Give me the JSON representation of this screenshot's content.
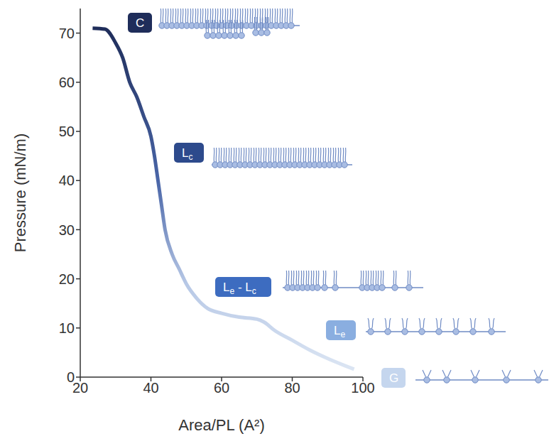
{
  "chart_data": {
    "type": "line",
    "x_label": "Area/PL (A²)",
    "y_label": "Pressure (mN/m)",
    "x": [
      23.5,
      27,
      30,
      32,
      34,
      36,
      38,
      40,
      41,
      42,
      43,
      44,
      46,
      48,
      50,
      53,
      56,
      60,
      65,
      70,
      72,
      75,
      80,
      85,
      90,
      95,
      97.5
    ],
    "values": [
      71,
      70.8,
      68,
      65,
      60,
      57,
      53,
      49,
      45,
      40,
      35,
      30,
      25,
      22,
      19,
      16,
      14,
      13,
      12.2,
      11.8,
      11.2,
      9.5,
      7.5,
      5.5,
      3.8,
      2.3,
      1.6
    ],
    "color": "#1f2d5a",
    "xlim": [
      20,
      100
    ],
    "xticks": [
      20,
      40,
      60,
      80,
      100
    ],
    "ylim": [
      0,
      75
    ],
    "yticks": [
      0,
      10,
      20,
      30,
      40,
      50,
      60,
      70
    ],
    "grid": false,
    "annotations": [
      {
        "text": "C",
        "color": "#1f2d5a"
      },
      {
        "text": "Lc",
        "color": "#2d4a8c"
      },
      {
        "text": "Le - Lc",
        "color": "#3d6cc0"
      },
      {
        "text": "Le",
        "color": "#8aaee0"
      },
      {
        "text": "G",
        "color": "#c5d6ee"
      }
    ]
  }
}
